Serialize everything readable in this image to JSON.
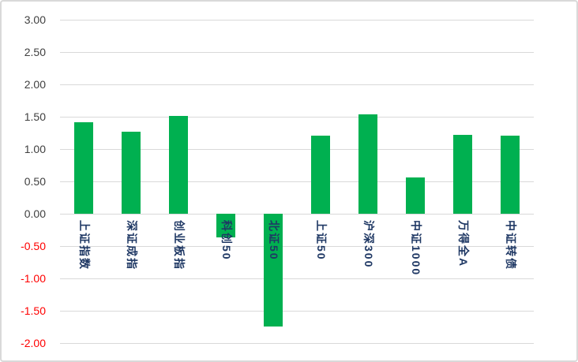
{
  "chart": {
    "background_color": "#FFFFFF",
    "border_color": "#D9D9D9"
  },
  "chart_data": {
    "type": "bar",
    "title": "",
    "xlabel": "",
    "ylabel": "",
    "categories": [
      "上证指数",
      "深证成指",
      "创业板指",
      "科创50",
      "北证50",
      "上证50",
      "沪深300",
      "中证1000",
      "万得全A",
      "中证转债"
    ],
    "values": [
      1.41,
      1.27,
      1.51,
      -0.36,
      -1.74,
      1.21,
      1.54,
      0.56,
      1.22,
      1.21
    ],
    "ylim": [
      -2.0,
      3.0
    ],
    "ytick_step": 0.5,
    "ytick_labels": [
      "3.00",
      "2.50",
      "2.00",
      "1.50",
      "1.00",
      "0.50",
      "0.00",
      "-0.50",
      "-1.00",
      "-1.50",
      "-2.00"
    ],
    "grid": true,
    "legend_position": "none",
    "bar_color": "#00B050",
    "gridline_color": "#D9D9D9",
    "tick_color_positive": "#404040",
    "tick_color_negative": "#FF0000",
    "category_label_color": "#1F3864"
  }
}
